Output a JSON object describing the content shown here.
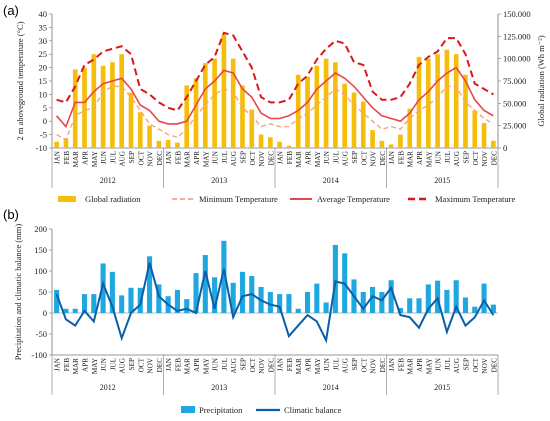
{
  "panel_labels": [
    "(a)",
    "(b)"
  ],
  "months": [
    "JAN",
    "FEB",
    "MAR",
    "APR",
    "MAY",
    "JUN",
    "JUL",
    "AUG",
    "SEP",
    "OCT",
    "NOV",
    "DEC"
  ],
  "years": [
    "2012",
    "2013",
    "2014",
    "2015"
  ],
  "colors": {
    "radiation": "#F5BE0B",
    "min_temp": "#F4A582",
    "avg_temp": "#E8464A",
    "max_temp": "#D7191C",
    "precip": "#1FA8E0",
    "balance": "#0B5EA8",
    "axis": "#777777"
  },
  "chart_data": [
    {
      "type": "bar",
      "panel": "(a)",
      "categories_note": "48 months, Jan 2012 - Dec 2015",
      "ylabel_left": "2 m aboveground temperature (°C)",
      "ylabel_right": "Global radiation (Wh m⁻²)",
      "ylim_left": [
        -10,
        40
      ],
      "yticks_left": [
        -10,
        -5,
        0,
        5,
        10,
        15,
        20,
        25,
        30,
        35,
        40
      ],
      "ylim_right": [
        0,
        150000
      ],
      "yticks_right": [
        "0",
        "25.000",
        "50.000",
        "75.000",
        "100.000",
        "125.000",
        "150.000"
      ],
      "series": [
        {
          "name": "Global radiation",
          "kind": "bar",
          "axis": "right",
          "values": [
            7000,
            11000,
            88000,
            90000,
            105000,
            92000,
            96000,
            105000,
            62000,
            40000,
            25000,
            8000,
            9000,
            6000,
            70000,
            78000,
            95000,
            100000,
            127000,
            100000,
            70000,
            43000,
            15000,
            12000,
            7000,
            2500,
            82000,
            80000,
            92000,
            100000,
            96000,
            72000,
            62000,
            52000,
            20000,
            8000,
            4000,
            15000,
            44000,
            102000,
            100000,
            105000,
            110000,
            105000,
            82000,
            42000,
            28000,
            8000
          ]
        },
        {
          "name": "Minimum Temperature",
          "kind": "line",
          "style": "dashed-thin",
          "axis": "left",
          "values": [
            -5,
            -7,
            2,
            4,
            5,
            11,
            13,
            13,
            9,
            4,
            -1,
            -3,
            -5,
            -6,
            -3,
            2,
            6,
            10,
            12,
            11,
            5,
            2,
            -2,
            -1,
            -2,
            -2,
            1,
            3,
            6,
            9,
            12,
            10,
            6,
            3,
            0,
            -3,
            -2,
            -3,
            1,
            4,
            6,
            9,
            13,
            13,
            7,
            4,
            1,
            -1
          ]
        },
        {
          "name": "Average Temperature",
          "kind": "line",
          "style": "solid",
          "axis": "left",
          "values": [
            2,
            -2,
            7,
            7,
            11,
            14,
            15,
            16,
            12,
            6,
            4,
            0,
            -1,
            -1,
            0,
            6,
            12,
            15,
            19,
            18,
            12,
            9,
            3,
            1,
            1,
            2,
            4,
            7,
            12,
            15,
            18,
            16,
            13,
            9,
            5,
            2,
            1,
            0,
            3,
            8,
            11,
            15,
            18,
            20,
            15,
            8,
            4,
            2
          ]
        },
        {
          "name": "Maximum Temperature",
          "kind": "line",
          "style": "dashed-thick",
          "axis": "left",
          "values": [
            8,
            7,
            13,
            21,
            23,
            26,
            27,
            28,
            25,
            12,
            10,
            7,
            5,
            4,
            9,
            15,
            21,
            24,
            33,
            32,
            26,
            20,
            9,
            7,
            7,
            8,
            14,
            17,
            23,
            27,
            30,
            29,
            22,
            21,
            11,
            8,
            8,
            9,
            14,
            21,
            24,
            26,
            31,
            31,
            25,
            14,
            12,
            10
          ]
        }
      ],
      "legend": [
        "Global radiation",
        "Minimum Temperature",
        "Average Temperature",
        "Maximum Temperature"
      ]
    },
    {
      "type": "bar",
      "panel": "(b)",
      "ylabel": "Precipitation and climatic balance (mm)",
      "ylim": [
        -100,
        200
      ],
      "yticks": [
        -100,
        -50,
        0,
        50,
        100,
        150,
        200
      ],
      "series": [
        {
          "name": "Precipitation",
          "kind": "bar",
          "values": [
            55,
            10,
            10,
            45,
            45,
            118,
            98,
            42,
            60,
            60,
            135,
            68,
            40,
            55,
            33,
            95,
            138,
            85,
            172,
            72,
            98,
            88,
            62,
            50,
            45,
            45,
            10,
            50,
            70,
            25,
            162,
            142,
            80,
            50,
            62,
            50,
            78,
            12,
            35,
            35,
            68,
            77,
            55,
            78,
            37,
            15,
            70,
            20
          ]
        },
        {
          "name": "Climatic balance",
          "kind": "line",
          "values": [
            45,
            -15,
            -30,
            5,
            -20,
            70,
            15,
            -60,
            0,
            20,
            120,
            40,
            20,
            5,
            10,
            0,
            100,
            10,
            105,
            -10,
            40,
            45,
            30,
            20,
            15,
            -55,
            -30,
            -5,
            -20,
            -65,
            75,
            70,
            40,
            10,
            40,
            30,
            60,
            -5,
            -10,
            -35,
            10,
            35,
            -45,
            15,
            -30,
            -10,
            30,
            -5
          ]
        }
      ],
      "legend": [
        "Precipitation",
        "Climatic balance"
      ]
    }
  ]
}
